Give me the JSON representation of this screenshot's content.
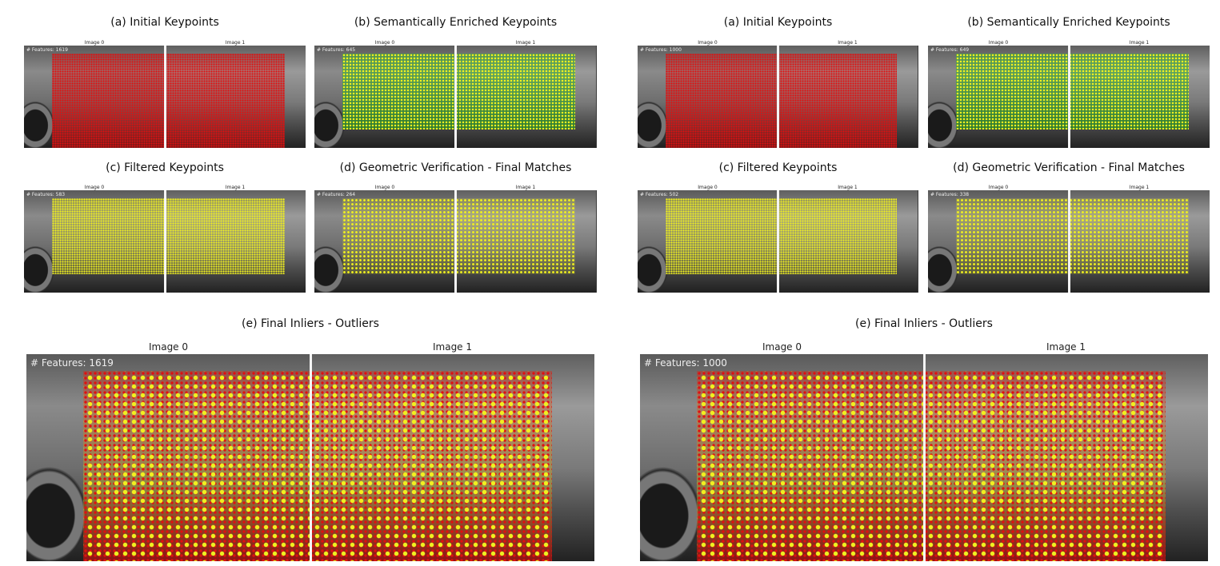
{
  "figures": [
    {
      "panels": [
        {
          "id": "a",
          "title": "(a) Initial Keypoints",
          "image0": "Image 0",
          "image1": "Image 1",
          "features": "# Features: 1619",
          "scheme": "red"
        },
        {
          "id": "b",
          "title": "(b) Semantically Enriched Keypoints",
          "image0": "Image 0",
          "image1": "Image 1",
          "features": "# Features: 645",
          "scheme": "green"
        },
        {
          "id": "c",
          "title": "(c) Filtered Keypoints",
          "image0": "Image 0",
          "image1": "Image 1",
          "features": "# Features: 583",
          "scheme": "yellow"
        },
        {
          "id": "d",
          "title": "(d) Geometric Verification - Final Matches",
          "image0": "Image 0",
          "image1": "Image 1",
          "features": "# Features: 264",
          "scheme": "yellow-sparse"
        },
        {
          "id": "e",
          "title": "(e) Final Inliers - Outliers",
          "image0": "Image 0",
          "image1": "Image 1",
          "features": "# Features: 1619",
          "scheme": "mixed"
        }
      ]
    },
    {
      "panels": [
        {
          "id": "a",
          "title": "(a) Initial Keypoints",
          "image0": "Image 0",
          "image1": "Image 1",
          "features": "# Features: 1000",
          "scheme": "red"
        },
        {
          "id": "b",
          "title": "(b) Semantically Enriched Keypoints",
          "image0": "Image 0",
          "image1": "Image 1",
          "features": "# Features: 649",
          "scheme": "green"
        },
        {
          "id": "c",
          "title": "(c) Filtered Keypoints",
          "image0": "Image 0",
          "image1": "Image 1",
          "features": "# Features: 502",
          "scheme": "yellow"
        },
        {
          "id": "d",
          "title": "(d) Geometric Verification - Final Matches",
          "image0": "Image 0",
          "image1": "Image 1",
          "features": "# Features: 338",
          "scheme": "yellow-sparse"
        },
        {
          "id": "e",
          "title": "(e) Final Inliers - Outliers",
          "image0": "Image 0",
          "image1": "Image 1",
          "features": "# Features: 1000",
          "scheme": "mixed"
        }
      ]
    }
  ],
  "colors": {
    "outlier": "#e01010",
    "inlier": "#f0f020",
    "semantic": "#3cb043"
  }
}
